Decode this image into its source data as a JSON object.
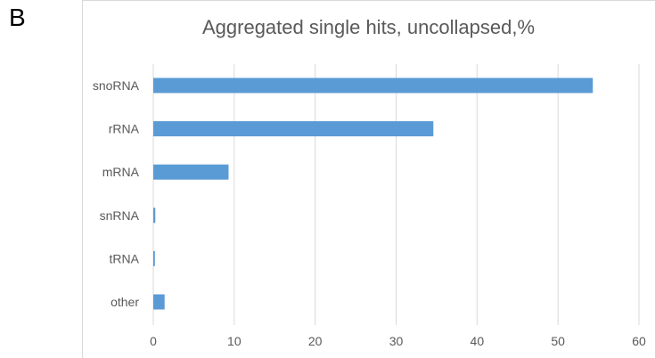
{
  "panel_label": "B",
  "chart_data": {
    "type": "bar",
    "orientation": "horizontal",
    "title": "Aggregated single hits, uncollapsed,%",
    "categories": [
      "snoRNA",
      "rRNA",
      "mRNA",
      "snRNA",
      "tRNA",
      "other"
    ],
    "values": [
      54.3,
      34.6,
      9.3,
      0.25,
      0.2,
      1.4
    ],
    "xlim": [
      0,
      60
    ],
    "xticks": [
      0,
      10,
      20,
      30,
      40,
      50,
      60
    ],
    "grid": "vertical",
    "bar_color": "#5b9bd5",
    "grid_color": "#d9d9d9",
    "legend": "none"
  }
}
